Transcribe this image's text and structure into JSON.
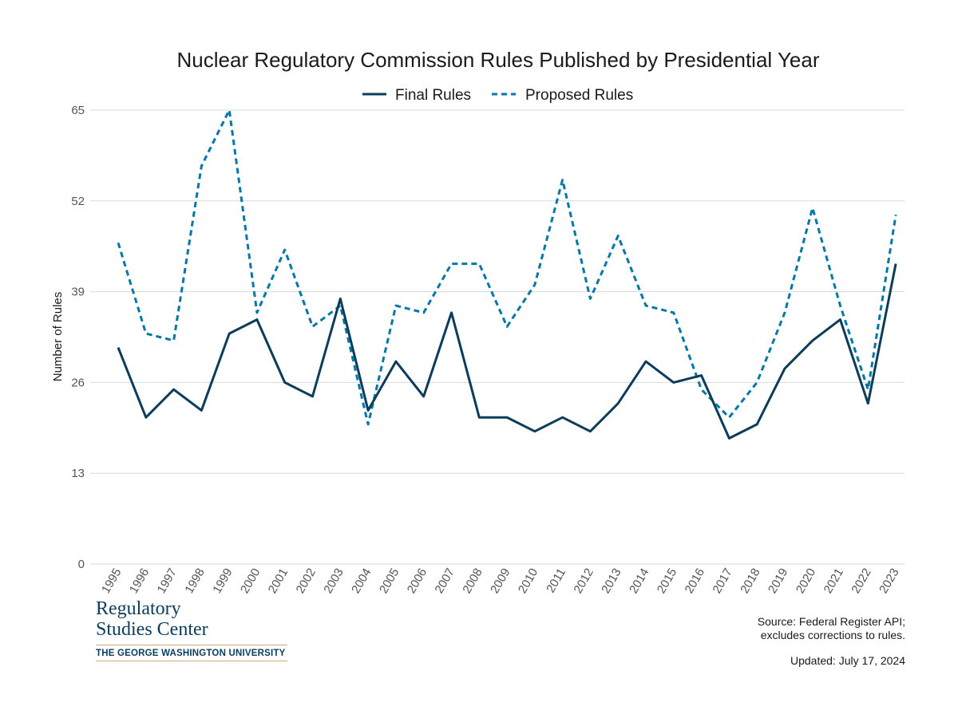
{
  "chart_data": {
    "type": "line",
    "title": "Nuclear Regulatory Commission Rules Published by Presidential Year",
    "ylabel": "Number of Rules",
    "xlabel": "",
    "ylim": [
      0,
      65
    ],
    "yticks": [
      0,
      13,
      26,
      39,
      52,
      65
    ],
    "grid": true,
    "legend_position": "top-center",
    "categories": [
      "1995",
      "1996",
      "1997",
      "1998",
      "1999",
      "2000",
      "2001",
      "2002",
      "2003",
      "2004",
      "2005",
      "2006",
      "2007",
      "2008",
      "2009",
      "2010",
      "2011",
      "2012",
      "2013",
      "2014",
      "2015",
      "2016",
      "2017",
      "2018",
      "2019",
      "2020",
      "2021",
      "2022",
      "2023"
    ],
    "series": [
      {
        "name": "Final Rules",
        "style": "solid",
        "color": "#0b3d5b",
        "values": [
          31,
          21,
          25,
          22,
          33,
          35,
          26,
          24,
          38,
          22,
          29,
          24,
          36,
          21,
          21,
          19,
          21,
          19,
          23,
          29,
          26,
          27,
          18,
          20,
          28,
          32,
          35,
          23,
          43
        ]
      },
      {
        "name": "Proposed Rules",
        "style": "dashed",
        "color": "#0077a8",
        "values": [
          46,
          33,
          32,
          57,
          65,
          36,
          45,
          34,
          37,
          20,
          37,
          36,
          43,
          43,
          34,
          40,
          55,
          38,
          47,
          37,
          36,
          25,
          21,
          26,
          36,
          51,
          37,
          25,
          50
        ]
      }
    ]
  },
  "logo": {
    "line1": "Regulatory",
    "line2": "Studies Center",
    "university": "THE GEORGE WASHINGTON UNIVERSITY"
  },
  "footer": {
    "source_line1": "Source: Federal Register API;",
    "source_line2": "excludes corrections to rules.",
    "updated": "Updated: July 17, 2024"
  },
  "colors": {
    "final": "#0b3d5b",
    "proposed": "#0077a8",
    "grid": "#d9d9d9"
  }
}
